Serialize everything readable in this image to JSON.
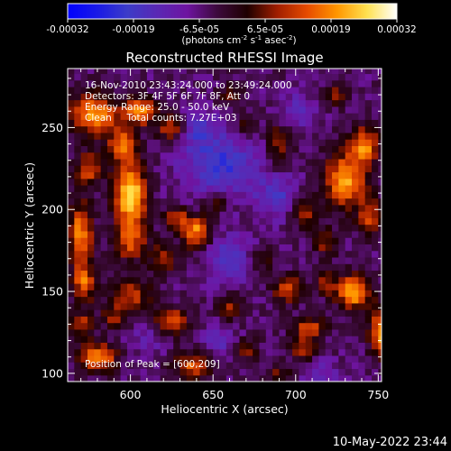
{
  "colors": {
    "background": "#000000",
    "foreground": "#ffffff",
    "colormap": [
      "#0000ff",
      "#1a1ae6",
      "#3c3cc8",
      "#5a28b4",
      "#6e14a0",
      "#3c0a3c",
      "#1e0000",
      "#a01e00",
      "#e64b00",
      "#ff9600",
      "#ffe150",
      "#ffffff"
    ]
  },
  "colorbar": {
    "tick_labels": [
      "-0.00032",
      "-0.00019",
      "-6.5e-05",
      "6.5e-05",
      "0.00019",
      "0.00032"
    ],
    "unit_label": {
      "open": "(photons cm",
      "exp1": "-2",
      "mid1": " s",
      "exp2": "-1",
      "mid2": " asec",
      "exp3": "-2",
      "close": ")"
    }
  },
  "chart_data": {
    "type": "heatmap",
    "title": "Reconstructed RHESSI Image",
    "xlabel": "Heliocentric X (arcsec)",
    "ylabel": "Heliocentric Y (arcsec)",
    "xlim": [
      562,
      752
    ],
    "ylim": [
      95,
      286
    ],
    "x_ticks": [
      600,
      650,
      700,
      750
    ],
    "y_ticks": [
      100,
      150,
      200,
      250
    ],
    "colorbar_range": [
      -0.00032,
      0.00032
    ],
    "colormap_name": "rainbow (blue-purple-black-red-yellow-white)",
    "annotations": [
      "16-Nov-2010 23:43:24.000 to 23:49:24.000",
      "Detectors: 3F 4F 5F 6F 7F 8F, Att 0",
      "Energy Range: 25.0 - 50.0 keV",
      "Clean     Total counts: 7.27E+03",
      "Position of Peak = [600,209]"
    ],
    "peak": [
      600,
      209
    ],
    "grid_step_arcsec": 4,
    "hotspots": [
      {
        "x": 600,
        "y": 209,
        "amp": 1.0,
        "sx": 7,
        "sy": 14
      },
      {
        "x": 578,
        "y": 258,
        "amp": 0.8,
        "sx": 10,
        "sy": 9
      },
      {
        "x": 606,
        "y": 260,
        "amp": 0.75,
        "sx": 7,
        "sy": 6
      },
      {
        "x": 625,
        "y": 250,
        "amp": 0.55,
        "sx": 6,
        "sy": 6
      },
      {
        "x": 595,
        "y": 240,
        "amp": 0.6,
        "sx": 6,
        "sy": 7
      },
      {
        "x": 575,
        "y": 225,
        "amp": 0.55,
        "sx": 6,
        "sy": 7
      },
      {
        "x": 570,
        "y": 185,
        "amp": 0.75,
        "sx": 5,
        "sy": 14
      },
      {
        "x": 572,
        "y": 155,
        "amp": 0.6,
        "sx": 5,
        "sy": 8
      },
      {
        "x": 600,
        "y": 180,
        "amp": 0.5,
        "sx": 7,
        "sy": 8
      },
      {
        "x": 620,
        "y": 170,
        "amp": 0.5,
        "sx": 6,
        "sy": 6
      },
      {
        "x": 640,
        "y": 187,
        "amp": 0.75,
        "sx": 6,
        "sy": 7
      },
      {
        "x": 628,
        "y": 195,
        "amp": 0.5,
        "sx": 5,
        "sy": 5
      },
      {
        "x": 600,
        "y": 148,
        "amp": 0.55,
        "sx": 9,
        "sy": 6
      },
      {
        "x": 625,
        "y": 132,
        "amp": 0.6,
        "sx": 7,
        "sy": 6
      },
      {
        "x": 590,
        "y": 135,
        "amp": 0.4,
        "sx": 5,
        "sy": 5
      },
      {
        "x": 580,
        "y": 110,
        "amp": 0.8,
        "sx": 8,
        "sy": 6
      },
      {
        "x": 570,
        "y": 130,
        "amp": 0.5,
        "sx": 5,
        "sy": 6
      },
      {
        "x": 638,
        "y": 105,
        "amp": 0.6,
        "sx": 8,
        "sy": 6
      },
      {
        "x": 660,
        "y": 140,
        "amp": 0.45,
        "sx": 5,
        "sy": 6
      },
      {
        "x": 652,
        "y": 205,
        "amp": 0.35,
        "sx": 5,
        "sy": 5
      },
      {
        "x": 690,
        "y": 240,
        "amp": 0.45,
        "sx": 5,
        "sy": 10
      },
      {
        "x": 670,
        "y": 250,
        "amp": 0.35,
        "sx": 5,
        "sy": 5
      },
      {
        "x": 705,
        "y": 200,
        "amp": 0.45,
        "sx": 6,
        "sy": 8
      },
      {
        "x": 680,
        "y": 170,
        "amp": 0.35,
        "sx": 5,
        "sy": 5
      },
      {
        "x": 718,
        "y": 180,
        "amp": 0.4,
        "sx": 5,
        "sy": 6
      },
      {
        "x": 730,
        "y": 218,
        "amp": 0.8,
        "sx": 9,
        "sy": 12
      },
      {
        "x": 742,
        "y": 240,
        "amp": 0.7,
        "sx": 6,
        "sy": 8
      },
      {
        "x": 745,
        "y": 195,
        "amp": 0.55,
        "sx": 5,
        "sy": 8
      },
      {
        "x": 735,
        "y": 150,
        "amp": 0.9,
        "sx": 7,
        "sy": 7
      },
      {
        "x": 718,
        "y": 155,
        "amp": 0.45,
        "sx": 5,
        "sy": 5
      },
      {
        "x": 752,
        "y": 125,
        "amp": 0.8,
        "sx": 5,
        "sy": 10
      },
      {
        "x": 708,
        "y": 128,
        "amp": 0.55,
        "sx": 7,
        "sy": 5
      },
      {
        "x": 695,
        "y": 152,
        "amp": 0.6,
        "sx": 6,
        "sy": 6
      },
      {
        "x": 705,
        "y": 115,
        "amp": 0.5,
        "sx": 5,
        "sy": 5
      },
      {
        "x": 690,
        "y": 100,
        "amp": 0.3,
        "sx": 5,
        "sy": 5
      },
      {
        "x": 670,
        "y": 115,
        "amp": 0.45,
        "sx": 5,
        "sy": 5
      },
      {
        "x": 660,
        "y": 270,
        "amp": 0.3,
        "sx": 5,
        "sy": 5
      },
      {
        "x": 725,
        "y": 270,
        "amp": 0.35,
        "sx": 5,
        "sy": 5
      }
    ],
    "coldspots": [
      {
        "x": 655,
        "y": 228,
        "amp": 0.5,
        "sx": 16,
        "sy": 14
      },
      {
        "x": 690,
        "y": 208,
        "amp": 0.35,
        "sx": 10,
        "sy": 10
      },
      {
        "x": 660,
        "y": 170,
        "amp": 0.35,
        "sx": 10,
        "sy": 10
      },
      {
        "x": 640,
        "y": 250,
        "amp": 0.35,
        "sx": 8,
        "sy": 8
      },
      {
        "x": 700,
        "y": 260,
        "amp": 0.3,
        "sx": 8,
        "sy": 8
      },
      {
        "x": 610,
        "y": 120,
        "amp": 0.2,
        "sx": 8,
        "sy": 6
      },
      {
        "x": 655,
        "y": 120,
        "amp": 0.25,
        "sx": 8,
        "sy": 8
      },
      {
        "x": 715,
        "y": 100,
        "amp": 0.25,
        "sx": 8,
        "sy": 6
      }
    ]
  },
  "footer": {
    "date_stamp": "10-May-2022 23:44"
  }
}
